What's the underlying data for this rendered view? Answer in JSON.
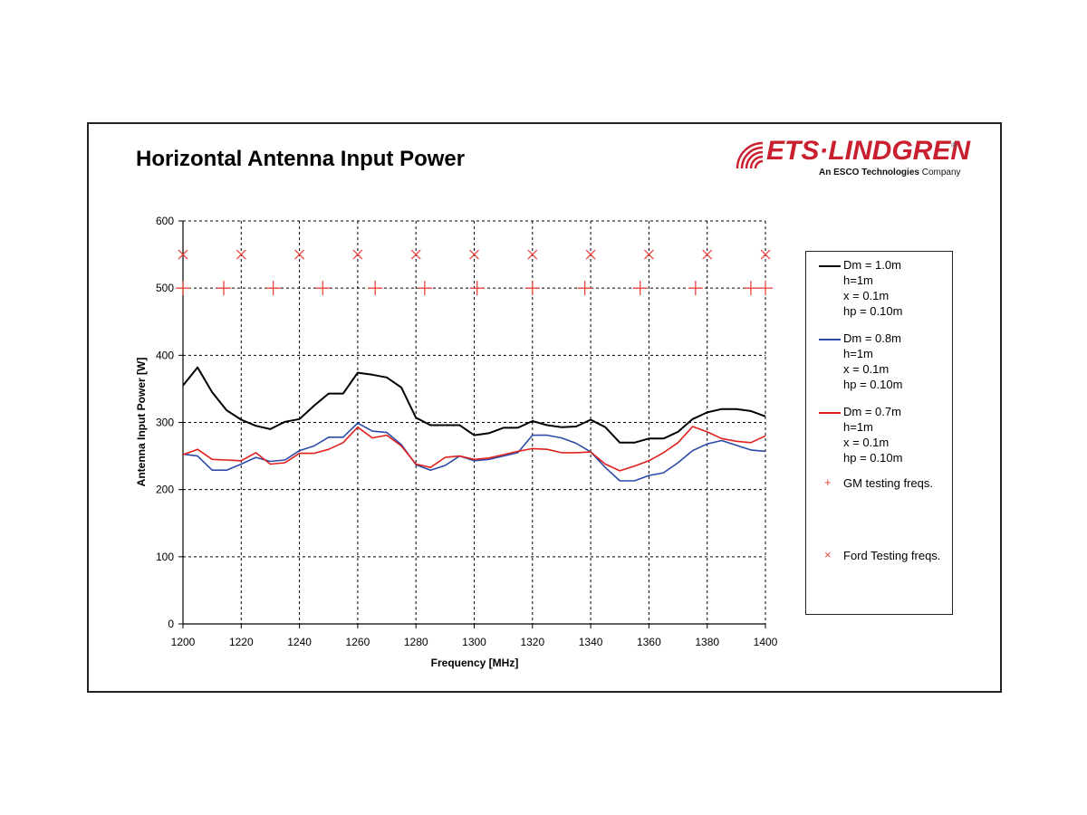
{
  "page": {
    "title": "Horizontal Antenna Input Power",
    "logo": {
      "name": "ETS·LINDGREN",
      "registered": "®",
      "tagline_bold": "An ESCO Technologies",
      "tagline_rest": " Company"
    }
  },
  "colors": {
    "black_series": "#000000",
    "blue_series": "#2b4aa8",
    "red_series": "#e0201c",
    "markers": "#e8453c",
    "grid": "#000000"
  },
  "chart_data": {
    "type": "line",
    "xlabel": "Frequency [MHz]",
    "ylabel": "Antenna Input Power [W]",
    "xlim": [
      1200,
      1400
    ],
    "ylim": [
      0,
      600
    ],
    "xticks": [
      1200,
      1220,
      1240,
      1260,
      1280,
      1300,
      1320,
      1340,
      1360,
      1380,
      1400
    ],
    "yticks": [
      0,
      100,
      200,
      300,
      400,
      500,
      600
    ],
    "grid": true,
    "legend_position": "right",
    "series": [
      {
        "name": "Dm = 1.0m",
        "legend_lines": [
          "Dm = 1.0m",
          "h=1m",
          "x = 0.1m",
          "hp = 0.10m"
        ],
        "color": "#000000",
        "x": [
          1200,
          1205,
          1210,
          1215,
          1220,
          1225,
          1230,
          1235,
          1240,
          1245,
          1250,
          1255,
          1260,
          1265,
          1270,
          1275,
          1280,
          1285,
          1290,
          1295,
          1300,
          1305,
          1310,
          1315,
          1320,
          1325,
          1330,
          1335,
          1340,
          1345,
          1350,
          1355,
          1360,
          1365,
          1370,
          1375,
          1380,
          1385,
          1390,
          1395,
          1400
        ],
        "y": [
          355,
          382,
          345,
          318,
          304,
          295,
          290,
          301,
          305,
          325,
          343,
          343,
          374,
          371,
          367,
          352,
          307,
          296,
          296,
          296,
          281,
          284,
          292,
          292,
          302,
          296,
          293,
          294,
          304,
          293,
          270,
          270,
          276,
          276,
          286,
          305,
          315,
          320,
          320,
          317,
          309
        ]
      },
      {
        "name": "Dm = 0.8m",
        "legend_lines": [
          "Dm = 0.8m",
          "h=1m",
          "x = 0.1m",
          "hp = 0.10m"
        ],
        "color": "#2b4aa8",
        "x": [
          1200,
          1205,
          1210,
          1215,
          1220,
          1225,
          1230,
          1235,
          1240,
          1245,
          1250,
          1255,
          1260,
          1265,
          1270,
          1275,
          1280,
          1285,
          1290,
          1295,
          1300,
          1305,
          1310,
          1315,
          1320,
          1325,
          1330,
          1335,
          1340,
          1345,
          1350,
          1355,
          1360,
          1365,
          1370,
          1375,
          1380,
          1385,
          1390,
          1395,
          1400
        ],
        "y": [
          253,
          250,
          229,
          229,
          238,
          248,
          242,
          244,
          258,
          265,
          278,
          278,
          299,
          287,
          285,
          267,
          237,
          229,
          236,
          250,
          243,
          245,
          250,
          255,
          281,
          281,
          277,
          269,
          256,
          233,
          213,
          213,
          221,
          225,
          240,
          258,
          268,
          273,
          266,
          259,
          257
        ]
      },
      {
        "name": "Dm = 0.7m",
        "legend_lines": [
          "Dm = 0.7m",
          "h=1m",
          "x = 0.1m",
          "hp = 0.10m"
        ],
        "color": "#e0201c",
        "x": [
          1200,
          1205,
          1210,
          1215,
          1220,
          1225,
          1230,
          1235,
          1240,
          1245,
          1250,
          1255,
          1260,
          1265,
          1270,
          1275,
          1280,
          1285,
          1290,
          1295,
          1300,
          1305,
          1310,
          1315,
          1320,
          1325,
          1330,
          1335,
          1340,
          1345,
          1350,
          1355,
          1360,
          1365,
          1370,
          1375,
          1380,
          1385,
          1390,
          1395,
          1400
        ],
        "y": [
          252,
          260,
          245,
          244,
          243,
          255,
          238,
          240,
          254,
          254,
          260,
          270,
          293,
          277,
          281,
          265,
          238,
          233,
          248,
          250,
          245,
          247,
          252,
          257,
          261,
          260,
          255,
          255,
          256,
          238,
          228,
          235,
          243,
          255,
          270,
          294,
          286,
          276,
          272,
          270,
          280
        ]
      }
    ],
    "marker_series": [
      {
        "name": "GM testing freqs.",
        "marker": "+",
        "y": 500,
        "x": [
          1200,
          1214,
          1231,
          1248,
          1266,
          1283,
          1301,
          1320,
          1338,
          1357,
          1376,
          1395,
          1400
        ]
      },
      {
        "name": "Ford Testing freqs.",
        "marker": "×",
        "y": 550,
        "x": [
          1200,
          1220,
          1240,
          1260,
          1280,
          1300,
          1320,
          1340,
          1360,
          1380,
          1400
        ]
      }
    ]
  }
}
